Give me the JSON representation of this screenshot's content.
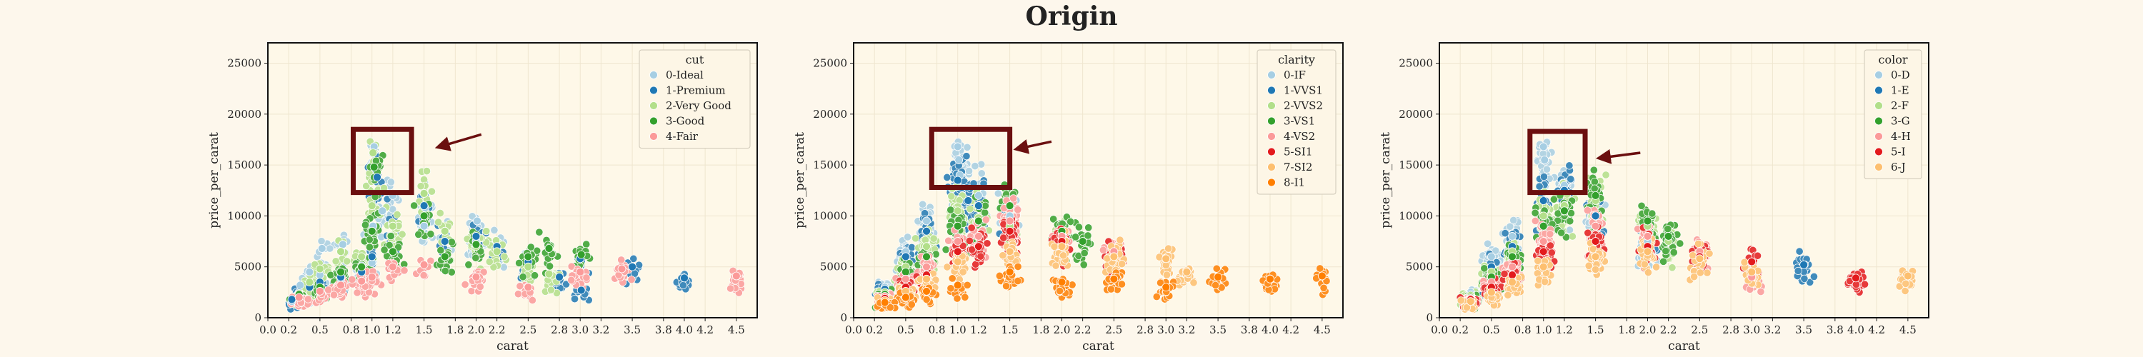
{
  "title": "Origin",
  "colors": {
    "paper_bg": "#fdf7ec",
    "axes_bg": "#fef8e8",
    "grid": "#efe6cf",
    "highlight": "#6b0f0f",
    "legend_bg": "#fdf6e6"
  },
  "panels": [
    {
      "xlabel": "carat",
      "ylabel": "price_per_carat",
      "legend_title": "cut",
      "legend": [
        {
          "label": "0-Ideal",
          "color": "#a6cee3"
        },
        {
          "label": "1-Premium",
          "color": "#1f78b4"
        },
        {
          "label": "2-Very Good",
          "color": "#b2df8a"
        },
        {
          "label": "3-Good",
          "color": "#33a02c"
        },
        {
          "label": "4-Fair",
          "color": "#fb9a99"
        }
      ]
    },
    {
      "xlabel": "carat",
      "ylabel": "price_per_carat",
      "legend_title": "clarity",
      "legend": [
        {
          "label": "0-IF",
          "color": "#a6cee3"
        },
        {
          "label": "1-VVS1",
          "color": "#1f78b4"
        },
        {
          "label": "2-VVS2",
          "color": "#b2df8a"
        },
        {
          "label": "3-VS1",
          "color": "#33a02c"
        },
        {
          "label": "4-VS2",
          "color": "#fb9a99"
        },
        {
          "label": "5-SI1",
          "color": "#e31a1c"
        },
        {
          "label": "7-SI2",
          "color": "#fdbf6f"
        },
        {
          "label": "8-I1",
          "color": "#ff7f00"
        }
      ]
    },
    {
      "xlabel": "carat",
      "ylabel": "price_per_carat",
      "legend_title": "color",
      "legend": [
        {
          "label": "0-D",
          "color": "#a6cee3"
        },
        {
          "label": "1-E",
          "color": "#1f78b4"
        },
        {
          "label": "2-F",
          "color": "#b2df8a"
        },
        {
          "label": "3-G",
          "color": "#33a02c"
        },
        {
          "label": "4-H",
          "color": "#fb9a99"
        },
        {
          "label": "5-I",
          "color": "#e31a1c"
        },
        {
          "label": "6-J",
          "color": "#fdbf6f"
        }
      ]
    }
  ],
  "chart_data": [
    {
      "type": "scatter",
      "title": "",
      "xlabel": "carat",
      "ylabel": "price_per_carat",
      "xlim": [
        0,
        4.7
      ],
      "ylim": [
        0,
        27000
      ],
      "xticks": [
        "0.0",
        "0.2",
        "0.5",
        "0.8",
        "1.0",
        "1.2",
        "1.5",
        "1.8",
        "2.0",
        "2.2",
        "2.5",
        "2.8",
        "3.0",
        "3.2",
        "3.5",
        "3.8",
        "4.0",
        "4.2",
        "4.5"
      ],
      "yticks": [
        "0",
        "5000",
        "10000",
        "15000",
        "20000",
        "25000"
      ],
      "grid": true,
      "legend_placement": "top-right",
      "highlight_box": {
        "x": [
          0.82,
          1.38
        ],
        "y": [
          12300,
          18500
        ]
      },
      "arrow": {
        "from": [
          2.05,
          18000
        ],
        "to": [
          1.65,
          16800
        ]
      },
      "series": [
        {
          "name": "0-Ideal",
          "x": [
            0.23,
            0.3,
            0.31,
            0.4,
            0.5,
            0.52,
            0.7,
            0.72,
            0.9,
            1.0,
            1.01,
            1.02,
            1.1,
            1.2,
            1.5,
            1.51,
            1.7,
            2.0,
            2.01,
            2.2,
            2.5
          ],
          "y": [
            1600,
            2000,
            3200,
            4500,
            4200,
            6800,
            3800,
            7200,
            5100,
            5400,
            9000,
            16800,
            10500,
            12000,
            9000,
            10800,
            8500,
            7500,
            9500,
            6800,
            5500
          ]
        },
        {
          "name": "1-Premium",
          "x": [
            0.23,
            0.3,
            0.4,
            0.5,
            0.7,
            0.9,
            1.0,
            1.05,
            1.2,
            1.5,
            1.7,
            2.0,
            2.2,
            2.5,
            2.8,
            3.0,
            3.01,
            3.5,
            4.0
          ],
          "y": [
            1800,
            2500,
            3000,
            3500,
            4000,
            4500,
            6000,
            13800,
            9000,
            11000,
            7500,
            8000,
            7000,
            5500,
            4000,
            5800,
            2700,
            5000,
            3900
          ]
        },
        {
          "name": "2-Very Good",
          "x": [
            0.3,
            0.4,
            0.5,
            0.7,
            0.9,
            1.0,
            1.01,
            1.2,
            1.5,
            1.7,
            2.0,
            2.2,
            2.5,
            2.7
          ],
          "y": [
            2400,
            3500,
            4800,
            6500,
            6000,
            11000,
            16200,
            9000,
            12200,
            8500,
            7000,
            6500,
            5000,
            4300
          ]
        },
        {
          "name": "3-Good",
          "x": [
            0.3,
            0.5,
            0.7,
            0.9,
            1.0,
            1.02,
            1.2,
            1.5,
            1.7,
            2.0,
            2.5,
            2.7,
            3.01
          ],
          "y": [
            2300,
            3000,
            4500,
            5000,
            8500,
            14800,
            6500,
            10000,
            6000,
            7200,
            6000,
            6800,
            6200
          ]
        },
        {
          "name": "4-Fair",
          "x": [
            0.3,
            0.5,
            0.7,
            0.9,
            1.0,
            1.2,
            1.5,
            2.0,
            2.5,
            3.0,
            3.4,
            4.5
          ],
          "y": [
            2000,
            2600,
            3200,
            3600,
            4000,
            5000,
            5200,
            4000,
            3000,
            4500,
            4800,
            4100
          ]
        }
      ]
    },
    {
      "type": "scatter",
      "title": "",
      "xlabel": "carat",
      "ylabel": "price_per_carat",
      "xlim": [
        0,
        4.7
      ],
      "ylim": [
        0,
        27000
      ],
      "xticks": [
        "0.0",
        "0.2",
        "0.5",
        "0.8",
        "1.0",
        "1.2",
        "1.5",
        "1.8",
        "2.0",
        "2.2",
        "2.5",
        "2.8",
        "3.0",
        "3.2",
        "3.5",
        "3.8",
        "4.0",
        "4.2",
        "4.5"
      ],
      "yticks": [
        "0",
        "5000",
        "10000",
        "15000",
        "20000",
        "25000"
      ],
      "grid": true,
      "legend_placement": "top-right",
      "highlight_box": {
        "x": [
          0.75,
          1.5
        ],
        "y": [
          12800,
          18500
        ]
      },
      "arrow": {
        "from": [
          1.9,
          17300
        ],
        "to": [
          1.58,
          16600
        ]
      },
      "series": [
        {
          "name": "0-IF",
          "x": [
            0.3,
            0.5,
            0.7,
            1.0,
            1.01,
            1.02,
            1.2,
            1.5
          ],
          "y": [
            3000,
            6500,
            9500,
            16800,
            15500,
            14000,
            12000,
            10000
          ]
        },
        {
          "name": "1-VVS1",
          "x": [
            0.3,
            0.5,
            0.7,
            1.0,
            1.1,
            1.2,
            1.5
          ],
          "y": [
            2800,
            6000,
            8500,
            13500,
            11500,
            11000,
            9500
          ]
        },
        {
          "name": "2-VVS2",
          "x": [
            0.3,
            0.5,
            0.7,
            1.0,
            1.2,
            1.5,
            2.0
          ],
          "y": [
            2500,
            5000,
            7000,
            10500,
            9800,
            9000,
            8200
          ]
        },
        {
          "name": "3-VS1",
          "x": [
            0.3,
            0.5,
            0.7,
            1.0,
            1.2,
            1.5,
            2.0,
            2.2
          ],
          "y": [
            2300,
            4500,
            6000,
            9000,
            9500,
            11000,
            8500,
            7500
          ]
        },
        {
          "name": "4-VS2",
          "x": [
            0.3,
            0.5,
            0.7,
            1.0,
            1.2,
            1.5,
            2.0,
            2.5
          ],
          "y": [
            2100,
            3800,
            5000,
            7500,
            8000,
            9500,
            8000,
            6500
          ]
        },
        {
          "name": "5-SI1",
          "x": [
            0.3,
            0.5,
            0.7,
            1.0,
            1.2,
            1.5,
            2.0,
            2.5
          ],
          "y": [
            1900,
            3000,
            4200,
            6500,
            7000,
            8500,
            7500,
            6000
          ]
        },
        {
          "name": "7-SI2",
          "x": [
            0.3,
            0.5,
            0.7,
            1.0,
            1.5,
            2.0,
            2.5,
            3.0,
            3.2
          ],
          "y": [
            1700,
            2600,
            3800,
            5500,
            6500,
            7000,
            6000,
            5800,
            4500
          ]
        },
        {
          "name": "8-I1",
          "x": [
            0.3,
            0.5,
            0.7,
            1.0,
            1.5,
            2.0,
            2.5,
            3.0,
            3.5,
            4.0,
            4.5
          ],
          "y": [
            1500,
            2000,
            2600,
            3200,
            4500,
            3500,
            3800,
            3000,
            4000,
            3800,
            4100
          ]
        }
      ]
    },
    {
      "type": "scatter",
      "title": "",
      "xlabel": "carat",
      "ylabel": "price_per_carat",
      "xlim": [
        0,
        4.7
      ],
      "ylim": [
        0,
        27000
      ],
      "xticks": [
        "0.0",
        "0.2",
        "0.5",
        "0.8",
        "1.0",
        "1.2",
        "1.5",
        "1.8",
        "2.0",
        "2.2",
        "2.5",
        "2.8",
        "3.0",
        "3.2",
        "3.5",
        "3.8",
        "4.0",
        "4.2",
        "4.5"
      ],
      "yticks": [
        "0",
        "5000",
        "10000",
        "15000",
        "20000",
        "25000"
      ],
      "grid": true,
      "legend_placement": "top-right",
      "highlight_box": {
        "x": [
          0.87,
          1.4
        ],
        "y": [
          12300,
          18300
        ]
      },
      "arrow": {
        "from": [
          1.93,
          16200
        ],
        "to": [
          1.55,
          15700
        ]
      },
      "series": [
        {
          "name": "0-D",
          "x": [
            0.3,
            0.5,
            0.7,
            1.0,
            1.01,
            1.2,
            1.5,
            2.0
          ],
          "y": [
            2500,
            6000,
            8000,
            16800,
            15500,
            13000,
            10000,
            7500
          ]
        },
        {
          "name": "1-E",
          "x": [
            0.3,
            0.5,
            0.7,
            1.0,
            1.2,
            1.5,
            2.0,
            3.5
          ],
          "y": [
            2300,
            5000,
            7000,
            11500,
            12500,
            10000,
            8000,
            5200
          ]
        },
        {
          "name": "2-F",
          "x": [
            0.3,
            0.5,
            0.7,
            1.0,
            1.2,
            1.5,
            2.0,
            2.2
          ],
          "y": [
            2200,
            4500,
            6500,
            10000,
            11000,
            11500,
            9000,
            7500
          ]
        },
        {
          "name": "3-G",
          "x": [
            0.3,
            0.5,
            0.7,
            1.0,
            1.2,
            1.5,
            2.0,
            2.2
          ],
          "y": [
            2000,
            4000,
            6000,
            9000,
            10500,
            12000,
            9500,
            8000
          ]
        },
        {
          "name": "4-H",
          "x": [
            0.3,
            0.5,
            0.7,
            1.0,
            1.5,
            2.0,
            2.5,
            3.0
          ],
          "y": [
            1900,
            3500,
            5000,
            7500,
            9000,
            8000,
            6500,
            4000
          ]
        },
        {
          "name": "5-I",
          "x": [
            0.3,
            0.5,
            0.7,
            1.0,
            1.5,
            2.0,
            2.5,
            3.0,
            4.0
          ],
          "y": [
            1800,
            3000,
            4200,
            6500,
            7500,
            7000,
            6000,
            5500,
            3900
          ]
        },
        {
          "name": "6-J",
          "x": [
            0.3,
            0.5,
            0.7,
            1.0,
            1.5,
            2.0,
            2.5,
            3.0,
            4.5
          ],
          "y": [
            1600,
            2500,
            3500,
            5000,
            6000,
            6500,
            5800,
            4500,
            4100
          ]
        }
      ]
    }
  ]
}
